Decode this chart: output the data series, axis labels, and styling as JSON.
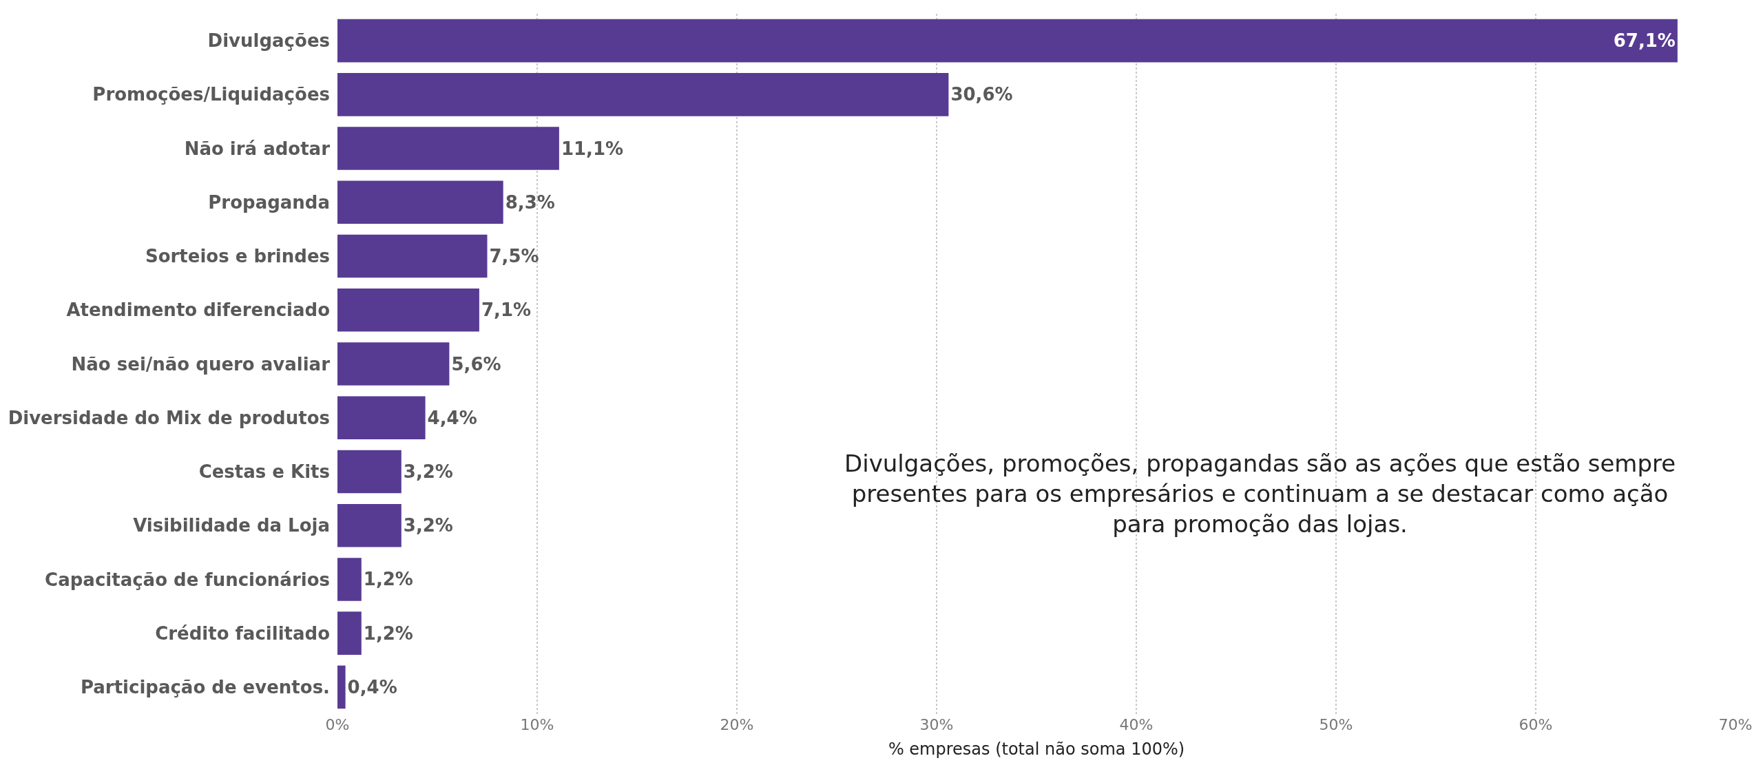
{
  "chart_data": {
    "type": "bar",
    "orientation": "horizontal",
    "categories": [
      "Divulgações",
      "Promoções/Liquidações",
      "Não irá adotar",
      "Propaganda",
      "Sorteios e brindes",
      "Atendimento diferenciado",
      "Não sei/não quero avaliar",
      "Diversidade do Mix de produtos",
      "Cestas e Kits",
      "Visibilidade da Loja",
      "Capacitação de funcionários",
      "Crédito facilitado",
      "Participação de eventos."
    ],
    "values": [
      67.1,
      30.6,
      11.1,
      8.3,
      7.5,
      7.1,
      5.6,
      4.4,
      3.2,
      3.2,
      1.2,
      1.2,
      0.4
    ],
    "value_labels": [
      "67,1%",
      "30,6%",
      "11,1%",
      "8,3%",
      "7,5%",
      "7,1%",
      "5,6%",
      "4,4%",
      "3,2%",
      "3,2%",
      "1,2%",
      "1,2%",
      "0,4%"
    ],
    "color": "#573b92",
    "xlim": [
      0,
      70
    ],
    "xticks": [
      {
        "value": 0,
        "label": "0%"
      },
      {
        "value": 10,
        "label": "10%"
      },
      {
        "value": 20,
        "label": "20%"
      },
      {
        "value": 30,
        "label": "30%"
      },
      {
        "value": 40,
        "label": "40%"
      },
      {
        "value": 50,
        "label": "50%"
      },
      {
        "value": 60,
        "label": "60%"
      },
      {
        "value": 70,
        "label": "70%"
      }
    ],
    "xlabel": "% empresas (total não soma 100%)",
    "grid": "x",
    "legend": false,
    "annotations": [
      "Divulgações, promoções, propagandas são as ações que estão sempre presentes para os empresários e continuam a se destacar como ação para promoção das lojas."
    ]
  }
}
